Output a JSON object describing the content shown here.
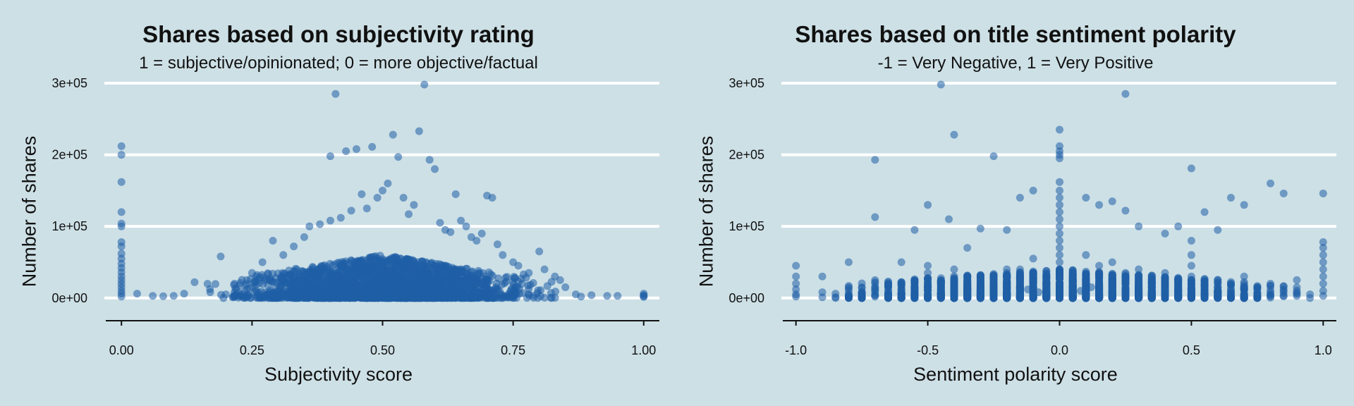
{
  "colors": {
    "background": "#cde0e6",
    "grid": "#ffffff",
    "axis": "#111111",
    "point": "#1f5fa6"
  },
  "chart_data": [
    {
      "type": "scatter",
      "title": "Shares based on subjectivity rating",
      "subtitle": "1 = subjective/opinionated; 0 = more objective/factual",
      "xlabel": "Subjectivity score",
      "ylabel": "Number of shares",
      "xlim": [
        -0.03,
        1.03
      ],
      "ylim": [
        -15000,
        300000
      ],
      "x_ticks": [
        0,
        0.25,
        0.5,
        0.75,
        1
      ],
      "x_tick_labels": [
        "0.00",
        "0.25",
        "0.50",
        "0.75",
        "1.00"
      ],
      "y_ticks": [
        0,
        100000,
        200000,
        300000
      ],
      "y_tick_labels": [
        "0e+00",
        "1e+05",
        "2e+05",
        "3e+05"
      ],
      "grid": "horizontal",
      "points": [
        [
          0.41,
          285000
        ],
        [
          0.58,
          298000
        ],
        [
          0.52,
          228000
        ],
        [
          0.57,
          233000
        ],
        [
          0.4,
          198000
        ],
        [
          0.43,
          205000
        ],
        [
          0.45,
          208000
        ],
        [
          0.48,
          211000
        ],
        [
          0.53,
          197000
        ],
        [
          0.59,
          193000
        ],
        [
          0.6,
          180000
        ],
        [
          0.51,
          160000
        ],
        [
          0.46,
          145000
        ],
        [
          0.49,
          140000
        ],
        [
          0.5,
          150000
        ],
        [
          0.54,
          140000
        ],
        [
          0.56,
          130000
        ],
        [
          0.64,
          145000
        ],
        [
          0.7,
          143000
        ],
        [
          0.71,
          140000
        ],
        [
          0.47,
          125000
        ],
        [
          0.44,
          122000
        ],
        [
          0.55,
          117000
        ],
        [
          0.61,
          105000
        ],
        [
          0.65,
          108000
        ],
        [
          0.66,
          100000
        ],
        [
          0.4,
          108000
        ],
        [
          0.42,
          112000
        ],
        [
          0.38,
          103000
        ],
        [
          0.36,
          100000
        ],
        [
          0.62,
          95000
        ],
        [
          0.63,
          92000
        ],
        [
          0.67,
          85000
        ],
        [
          0.68,
          80000
        ],
        [
          0.69,
          90000
        ],
        [
          0.72,
          75000
        ],
        [
          0.73,
          60000
        ],
        [
          0.75,
          50000
        ],
        [
          0.76,
          45000
        ],
        [
          0.78,
          35000
        ],
        [
          0.8,
          65000
        ],
        [
          0.81,
          40000
        ],
        [
          0.77,
          33000
        ],
        [
          0.83,
          30000
        ],
        [
          0.84,
          25000
        ],
        [
          0.85,
          15000
        ],
        [
          0.29,
          80000
        ],
        [
          0.33,
          72000
        ],
        [
          0.35,
          85000
        ],
        [
          0.31,
          60000
        ],
        [
          0.27,
          50000
        ],
        [
          0.25,
          35000
        ],
        [
          0.24,
          25000
        ],
        [
          0.19,
          58000
        ],
        [
          0.22,
          12000
        ],
        [
          0.14,
          22000
        ],
        [
          0.2,
          5000
        ],
        [
          0.17,
          8000
        ],
        [
          0.12,
          6000
        ],
        [
          0.1,
          3000
        ],
        [
          0.08,
          2500
        ],
        [
          0.06,
          3000
        ],
        [
          0.03,
          6000
        ],
        [
          0.87,
          5000
        ],
        [
          0.9,
          4000
        ],
        [
          0.93,
          3000
        ],
        [
          0.95,
          3000
        ],
        [
          0.88,
          2000
        ],
        [
          0,
          212000
        ],
        [
          0,
          200000
        ],
        [
          0,
          162000
        ],
        [
          0,
          120000
        ],
        [
          0,
          104000
        ],
        [
          0,
          100000
        ],
        [
          0,
          78000
        ],
        [
          0,
          72000
        ],
        [
          0,
          62000
        ],
        [
          0,
          55000
        ],
        [
          0,
          48000
        ],
        [
          0,
          42000
        ],
        [
          0,
          36000
        ],
        [
          0,
          30000
        ],
        [
          0,
          25000
        ],
        [
          0,
          20000
        ],
        [
          0,
          15000
        ],
        [
          0,
          10000
        ],
        [
          0,
          6000
        ],
        [
          0,
          2000
        ],
        [
          1,
          6000
        ],
        [
          1,
          4000
        ],
        [
          1,
          2500
        ],
        [
          1,
          1500
        ]
      ]
    },
    {
      "type": "scatter",
      "title": "Shares based on title sentiment polarity",
      "subtitle": "-1 = Very Negative, 1 = Very Positive",
      "xlabel": "Sentiment polarity score",
      "ylabel": "Number of shares",
      "xlim": [
        -1.05,
        1.05
      ],
      "ylim": [
        -15000,
        300000
      ],
      "x_ticks": [
        -1,
        -0.5,
        0,
        0.5,
        1
      ],
      "x_tick_labels": [
        "-1.0",
        "-0.5",
        "0.0",
        "0.5",
        "1.0"
      ],
      "y_ticks": [
        0,
        100000,
        200000,
        300000
      ],
      "y_tick_labels": [
        "0e+00",
        "1e+05",
        "2e+05",
        "3e+05"
      ],
      "grid": "horizontal",
      "points": [
        [
          -0.45,
          298000
        ],
        [
          0.25,
          285000
        ],
        [
          -0.4,
          228000
        ],
        [
          -0.7,
          193000
        ],
        [
          -0.25,
          198000
        ],
        [
          0.5,
          181000
        ],
        [
          0.8,
          160000
        ],
        [
          0.85,
          146000
        ],
        [
          1,
          146000
        ],
        [
          0.65,
          140000
        ],
        [
          0.7,
          130000
        ],
        [
          -0.5,
          130000
        ],
        [
          -0.3,
          97000
        ],
        [
          -0.42,
          110000
        ],
        [
          -0.7,
          113000
        ],
        [
          -0.15,
          140000
        ],
        [
          0.2,
          135000
        ],
        [
          0.1,
          140000
        ],
        [
          0.15,
          130000
        ],
        [
          0.25,
          122000
        ],
        [
          0.3,
          100000
        ],
        [
          0.4,
          90000
        ],
        [
          0.55,
          120000
        ],
        [
          0.6,
          95000
        ],
        [
          -0.1,
          150000
        ],
        [
          -0.35,
          70000
        ],
        [
          -0.55,
          95000
        ],
        [
          -0.6,
          50000
        ],
        [
          -0.8,
          50000
        ],
        [
          -0.9,
          30000
        ],
        [
          0.9,
          25000
        ],
        [
          0.95,
          5000
        ],
        [
          -0.2,
          95000
        ],
        [
          0.45,
          100000
        ],
        [
          0,
          235000
        ],
        [
          0,
          212000
        ],
        [
          0,
          205000
        ],
        [
          0,
          200000
        ],
        [
          0,
          195000
        ],
        [
          0,
          162000
        ],
        [
          0,
          150000
        ],
        [
          0,
          140000
        ],
        [
          0,
          130000
        ],
        [
          0,
          120000
        ],
        [
          0,
          110000
        ],
        [
          0,
          100000
        ],
        [
          0,
          90000
        ],
        [
          0,
          80000
        ],
        [
          0,
          70000
        ],
        [
          0,
          60000
        ],
        [
          0,
          50000
        ],
        [
          0,
          40000
        ],
        [
          0,
          30000
        ],
        [
          0,
          20000
        ],
        [
          0,
          10000
        ],
        [
          0,
          3000
        ],
        [
          -1,
          45000
        ],
        [
          -1,
          30000
        ],
        [
          -1,
          20000
        ],
        [
          -1,
          12000
        ],
        [
          -1,
          5000
        ],
        [
          -1,
          2000
        ],
        [
          1,
          78000
        ],
        [
          1,
          70000
        ],
        [
          1,
          60000
        ],
        [
          1,
          50000
        ],
        [
          1,
          40000
        ],
        [
          1,
          30000
        ],
        [
          1,
          20000
        ],
        [
          1,
          10000
        ],
        [
          1,
          3000
        ],
        [
          0.5,
          80000
        ],
        [
          0.5,
          60000
        ],
        [
          0.5,
          45000
        ],
        [
          0.5,
          30000
        ],
        [
          0.5,
          20000
        ],
        [
          0.5,
          10000
        ],
        [
          0.5,
          3000
        ],
        [
          -0.5,
          45000
        ],
        [
          -0.5,
          35000
        ],
        [
          -0.5,
          25000
        ],
        [
          -0.5,
          15000
        ],
        [
          -0.5,
          5000
        ],
        [
          -0.7,
          25000
        ],
        [
          -0.7,
          12000
        ],
        [
          -0.7,
          4000
        ],
        [
          -0.4,
          40000
        ],
        [
          -0.4,
          25000
        ],
        [
          -0.4,
          10000
        ],
        [
          0.7,
          30000
        ],
        [
          0.7,
          15000
        ],
        [
          0.7,
          5000
        ],
        [
          0.8,
          20000
        ],
        [
          0.8,
          8000
        ],
        [
          -0.8,
          15000
        ],
        [
          -0.8,
          5000
        ],
        [
          0.3,
          40000
        ],
        [
          0.3,
          20000
        ],
        [
          0.3,
          8000
        ],
        [
          -0.3,
          30000
        ],
        [
          -0.3,
          12000
        ],
        [
          0.6,
          25000
        ],
        [
          0.6,
          8000
        ],
        [
          -0.6,
          20000
        ],
        [
          -0.6,
          6000
        ],
        [
          0.9,
          15000
        ],
        [
          -0.9,
          8000
        ],
        [
          0.4,
          35000
        ],
        [
          0.4,
          15000
        ],
        [
          -0.2,
          40000
        ],
        [
          -0.2,
          15000
        ],
        [
          0.2,
          50000
        ],
        [
          0.2,
          20000
        ],
        [
          0.1,
          60000
        ],
        [
          0.1,
          25000
        ],
        [
          -0.1,
          55000
        ],
        [
          -0.1,
          20000
        ],
        [
          0.15,
          45000
        ],
        [
          -0.15,
          40000
        ],
        [
          0.25,
          35000
        ],
        [
          -0.25,
          30000
        ],
        [
          0.35,
          28000
        ],
        [
          -0.35,
          22000
        ],
        [
          0.45,
          25000
        ],
        [
          -0.45,
          18000
        ],
        [
          0.55,
          20000
        ],
        [
          -0.55,
          15000
        ],
        [
          0.65,
          18000
        ],
        [
          -0.65,
          10000
        ],
        [
          0.75,
          12000
        ],
        [
          -0.75,
          8000
        ],
        [
          0.85,
          10000
        ],
        [
          -0.85,
          6000
        ],
        [
          0.05,
          30000
        ],
        [
          -0.05,
          28000
        ],
        [
          0.12,
          15000
        ],
        [
          -0.12,
          12000
        ],
        [
          0.08,
          10000
        ],
        [
          -0.08,
          8000
        ]
      ]
    }
  ]
}
